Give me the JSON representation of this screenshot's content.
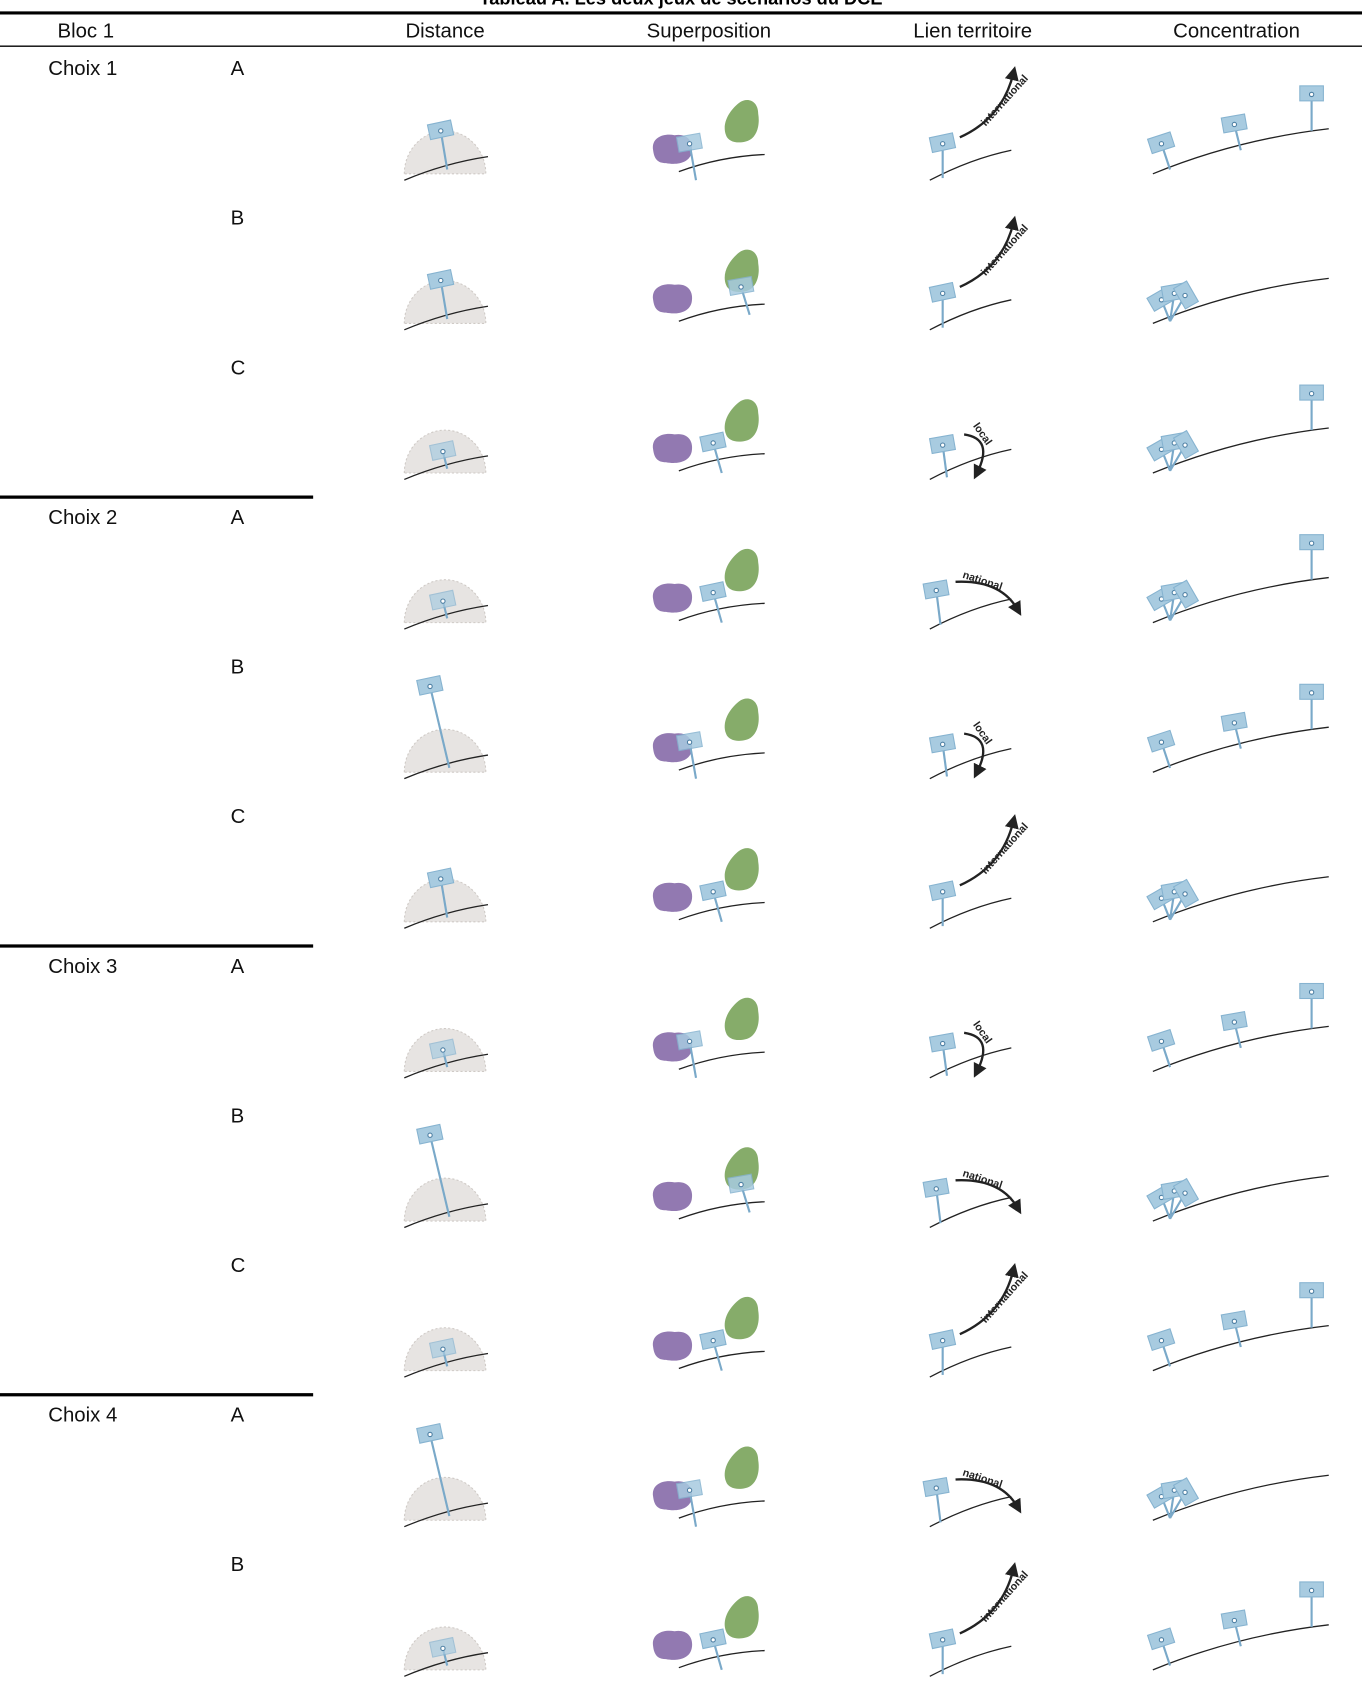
{
  "title": "Tableau A. Les deux jeux de scénarios du DCE",
  "header": [
    "Bloc 1",
    "Distance",
    "Superposition",
    "Lien territoire",
    "Concentration"
  ],
  "rows": [
    {
      "choice": "Choix 1",
      "option": "A",
      "link": "international"
    },
    {
      "option": "B",
      "link": "international"
    },
    {
      "option": "C",
      "link": "local"
    },
    {
      "choice": "Choix 2",
      "option": "A",
      "link": "national"
    },
    {
      "option": "B",
      "link": "local"
    },
    {
      "option": "C",
      "link": "international"
    },
    {
      "choice": "Choix 3",
      "option": "A",
      "link": "local"
    },
    {
      "option": "B",
      "link": "national"
    },
    {
      "option": "C",
      "link": "international"
    },
    {
      "choice": "Choix 4",
      "option": "A",
      "link": "national"
    },
    {
      "option": "B",
      "link": "international"
    }
  ]
}
